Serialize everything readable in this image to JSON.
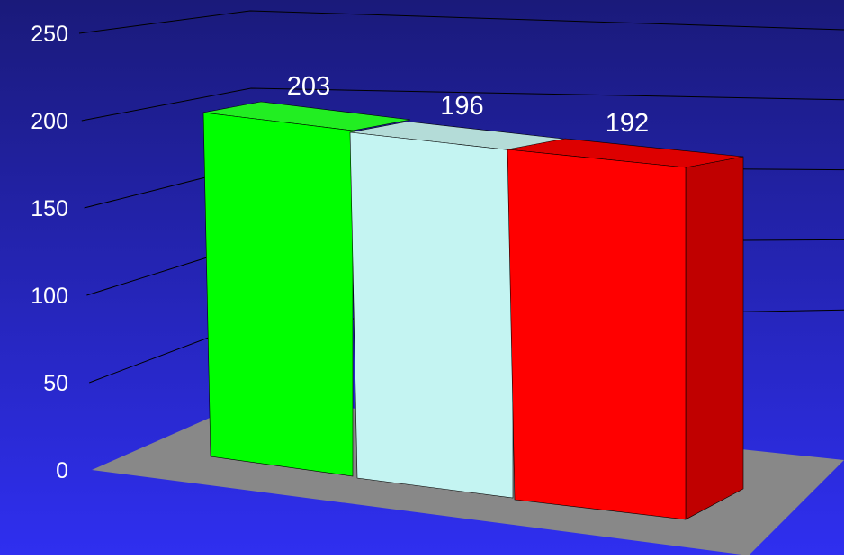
{
  "chart_data": {
    "type": "bar",
    "title": "",
    "xlabel": "",
    "ylabel": "",
    "ylim": [
      0,
      250
    ],
    "yticks": [
      0,
      50,
      100,
      150,
      200,
      250
    ],
    "grid": true,
    "legend": "none",
    "categories": [
      "",
      "",
      ""
    ],
    "values": [
      203,
      196,
      192
    ],
    "data_labels": [
      "203",
      "196",
      "192"
    ],
    "bar_colors": [
      "#00ff00",
      "#c4f4f2",
      "#ff0000"
    ],
    "side_colors": [
      "#00c800",
      "#a6d6d4",
      "#c00000"
    ],
    "top_colors": [
      "#22ee22",
      "#b4dcd8",
      "#dd0000"
    ],
    "background_top": "#1a1a7a",
    "background_bottom": "#2f2ff0",
    "floor_color": "#888888",
    "gridline_color": "#000000",
    "text_color": "#ffffff"
  }
}
